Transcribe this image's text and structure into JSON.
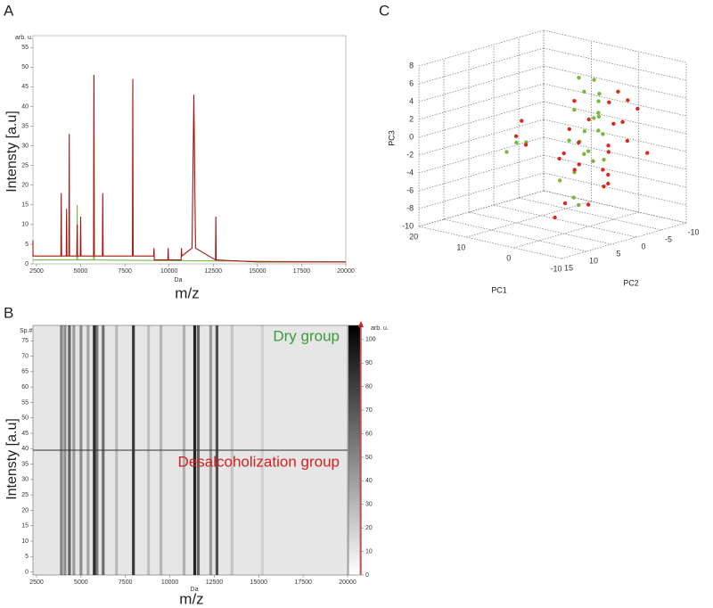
{
  "chart_data": [
    {
      "type": "line",
      "panel": "A",
      "unit_label": "arb. u.",
      "x_unit": "Da",
      "xlabel": "m/z",
      "ylabel": "Intensty [a.u]",
      "xlim": [
        2300,
        20000
      ],
      "xticks": [
        2500,
        5000,
        7500,
        10000,
        12500,
        15000,
        17500,
        20000
      ],
      "ylim": [
        0,
        58
      ],
      "yticks": [
        0,
        5,
        10,
        15,
        20,
        25,
        30,
        35,
        40,
        45,
        50,
        55
      ],
      "series": [
        {
          "color": "#6fbf4a",
          "x": [
            2000,
            4780,
            4800,
            4820,
            5730,
            5750,
            5770,
            20000
          ],
          "values": [
            1,
            1,
            15,
            1,
            1,
            48,
            1,
            0.5
          ]
        },
        {
          "color": "#a3130f",
          "x": [
            2000,
            2180,
            2200,
            2220,
            3880,
            3900,
            3920,
            4180,
            4200,
            4220,
            4330,
            4350,
            4370,
            4780,
            4800,
            4820,
            4980,
            5000,
            5020,
            5730,
            5750,
            5770,
            6230,
            6250,
            6270,
            7930,
            7950,
            7970,
            9130,
            9150,
            9170,
            9930,
            9950,
            9970,
            10680,
            10700,
            10720,
            11300,
            11400,
            11500,
            12630,
            12650,
            12670,
            15000,
            20000
          ],
          "values": [
            2,
            2,
            6,
            2,
            2,
            18,
            2,
            2,
            14,
            2,
            2,
            33,
            2,
            2,
            10,
            2,
            2,
            12,
            2,
            2,
            48,
            2,
            2,
            18,
            2,
            2,
            47,
            2,
            2,
            4,
            1,
            1,
            4,
            1,
            1,
            4,
            2,
            4,
            43,
            4,
            1,
            12,
            1,
            0.5,
            0.5
          ]
        }
      ]
    },
    {
      "type": "heatmap",
      "panel": "B",
      "ylabel_small": "Sp.#",
      "x_unit": "Da",
      "xlabel": "m/z",
      "ylabel": "Intensty [a.u]",
      "unit_label": "arb. u.",
      "xlim": [
        2300,
        20000
      ],
      "xticks": [
        2500,
        5000,
        7500,
        10000,
        12500,
        15000,
        17500,
        20000
      ],
      "ylim": [
        -1,
        80
      ],
      "yticks": [
        0,
        5,
        10,
        15,
        20,
        25,
        30,
        35,
        40,
        45,
        50,
        55,
        60,
        65,
        70,
        75
      ],
      "clim": [
        0,
        106
      ],
      "cticks": [
        0,
        10,
        20,
        30,
        40,
        50,
        60,
        70,
        80,
        90,
        100
      ],
      "band_mz": [
        3900,
        4100,
        4350,
        4600,
        5000,
        5400,
        5750,
        5900,
        6250,
        7000,
        7950,
        8800,
        9500,
        10800,
        11400,
        11600,
        12300,
        12650,
        13500,
        15200
      ],
      "band_intensity": [
        45,
        40,
        60,
        35,
        40,
        30,
        85,
        50,
        55,
        20,
        80,
        18,
        22,
        25,
        90,
        60,
        35,
        70,
        15,
        10
      ],
      "group_boundary": 39.5,
      "annotations": [
        {
          "text": "Dry group",
          "color": "#3a9a3a"
        },
        {
          "text": "Desalcoholization group",
          "color": "#d42020"
        }
      ]
    },
    {
      "type": "scatter3d",
      "panel": "C",
      "xlabel": "PC1",
      "ylabel": "PC2",
      "zlabel": "PC3",
      "xlim": [
        -10,
        20
      ],
      "xticks": [
        -10,
        0,
        10,
        20
      ],
      "ylim": [
        -10,
        15
      ],
      "yticks": [
        15,
        10,
        5,
        0,
        -5,
        -10
      ],
      "zlim": [
        -10,
        8
      ],
      "zticks": [
        -10,
        -8,
        -6,
        -4,
        -2,
        0,
        2,
        4,
        6,
        8
      ],
      "series": [
        {
          "color": "#78b83a",
          "x": [
            10,
            11,
            9,
            0,
            1,
            -1,
            2,
            0,
            -2,
            1,
            3,
            -3,
            0,
            2,
            -1,
            1,
            -2,
            4,
            0,
            -1,
            3,
            -4,
            1,
            2,
            -2
          ],
          "y": [
            5,
            6,
            4,
            2,
            0,
            -1,
            1,
            -2,
            0,
            3,
            -1,
            2,
            -3,
            1,
            4,
            -2,
            0,
            2,
            -1,
            3,
            -2,
            1,
            0,
            -4,
            2
          ],
          "z": [
            -1,
            -2,
            -1,
            7,
            5,
            4,
            3,
            2,
            1,
            0,
            -1,
            -2,
            -3,
            -4,
            -6,
            6,
            3,
            -5,
            2,
            -7,
            0,
            1,
            -2,
            4,
            -1
          ]
        },
        {
          "color": "#d62a1e",
          "x": [
            9,
            8,
            11,
            -3,
            -5,
            0,
            2,
            -4,
            -6,
            1,
            -2,
            -1,
            3,
            -3,
            0,
            -5,
            2,
            -4,
            1,
            -2,
            5,
            -1,
            0,
            -3,
            4,
            -6,
            2,
            -1
          ],
          "y": [
            6,
            5,
            3,
            -3,
            -5,
            0,
            2,
            -4,
            -6,
            1,
            -2,
            3,
            0,
            -1,
            -3,
            -2,
            4,
            1,
            -5,
            2,
            0,
            -4,
            5,
            -1,
            3,
            -2,
            1,
            -3
          ],
          "z": [
            0,
            -1,
            1,
            5,
            3,
            2,
            1,
            4,
            -2,
            -3,
            -1,
            0,
            -4,
            -5,
            -6,
            2,
            -2,
            -3,
            3,
            -7,
            -8,
            1,
            -1,
            -4,
            -9,
            0,
            4,
            -2
          ]
        }
      ]
    }
  ]
}
